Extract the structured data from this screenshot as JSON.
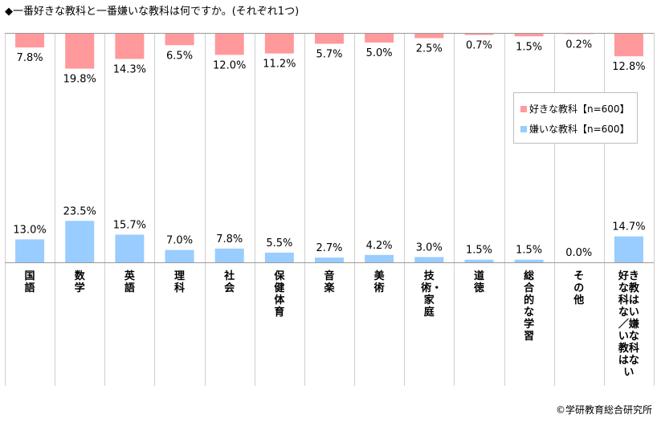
{
  "title": "◆一番好きな教科と一番嫌いな教科は何ですか。(それぞれ1つ)",
  "copyright": "©学研教育総合研究所",
  "colors": {
    "like": "#ff999c",
    "dislike": "#99ccff",
    "grid": "#cfcfcf",
    "axis": "#9a9a9a"
  },
  "chart_data": {
    "type": "bar",
    "categories": [
      "国語",
      "数学",
      "英語",
      "理科",
      "社会",
      "保健体育",
      "音楽",
      "美術",
      "技術・家庭",
      "道徳",
      "総合的な学習",
      "その他",
      "好きな教科はない/嫌いな教科はない"
    ],
    "category_labels": [
      "国語",
      "数学",
      "英語",
      "理科",
      "社会",
      "保健体育",
      "音楽",
      "美術",
      "技術・家庭",
      "道徳",
      "総合的な学習",
      "その他",
      "好きな教科はない／嫌いな教科はない"
    ],
    "series": [
      {
        "name": "好きな教科【n=600】",
        "values": [
          7.8,
          19.8,
          14.3,
          6.5,
          12.0,
          11.2,
          5.7,
          5.0,
          2.5,
          0.7,
          1.5,
          0.2,
          12.8
        ],
        "labels": [
          "7.8%",
          "19.8%",
          "14.3%",
          "6.5%",
          "12.0%",
          "11.2%",
          "5.7%",
          "5.0%",
          "2.5%",
          "0.7%",
          "1.5%",
          "0.2%",
          "12.8%"
        ]
      },
      {
        "name": "嫌いな教科【n=600】",
        "values": [
          13.0,
          23.5,
          15.7,
          7.0,
          7.8,
          5.5,
          2.7,
          4.2,
          3.0,
          1.5,
          1.5,
          0.0,
          14.7
        ],
        "labels": [
          "13.0%",
          "23.5%",
          "15.7%",
          "7.0%",
          "7.8%",
          "5.5%",
          "2.7%",
          "4.2%",
          "3.0%",
          "1.5%",
          "1.5%",
          "0.0%",
          "14.7%"
        ]
      }
    ],
    "unit": "%",
    "legend_position": "right"
  }
}
